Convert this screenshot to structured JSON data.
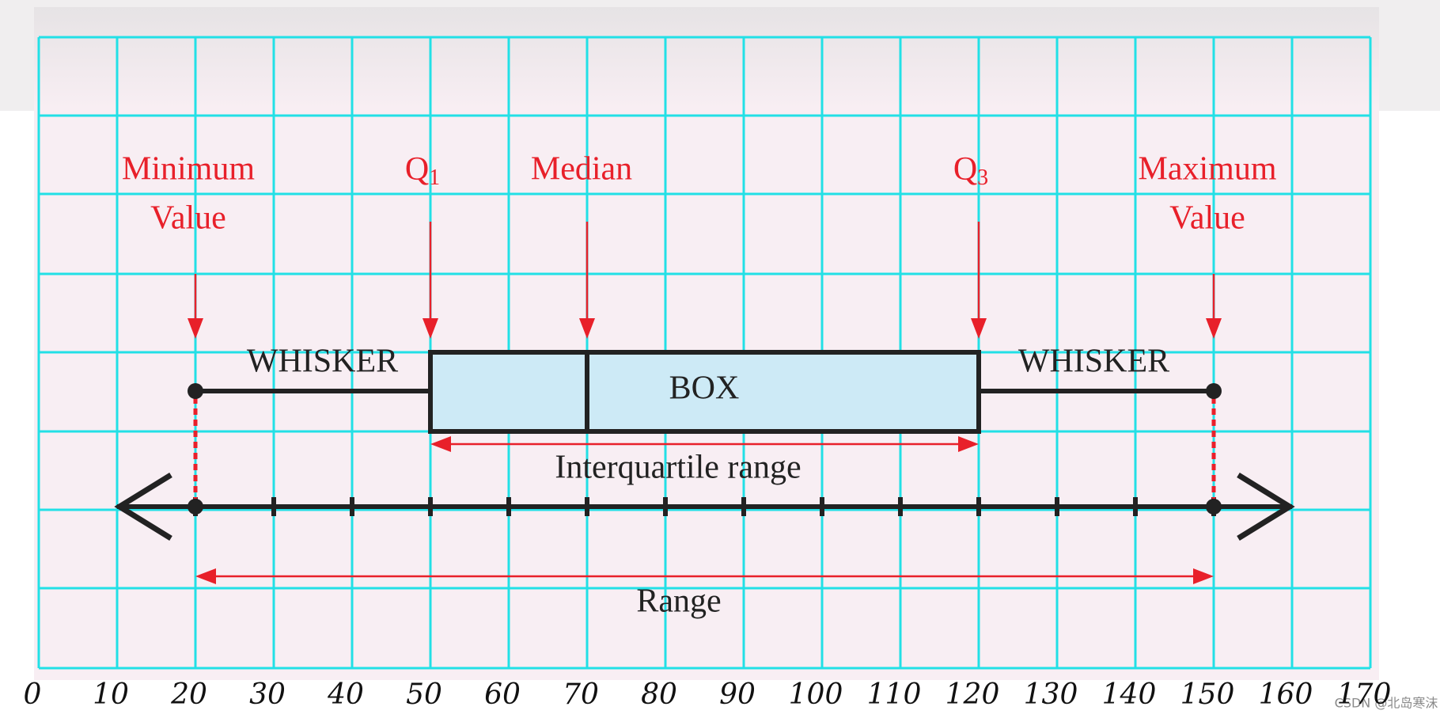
{
  "chart_data": {
    "type": "box",
    "min": 20,
    "q1": 50,
    "median": 70,
    "q3": 120,
    "max": 150,
    "xlim": [
      0,
      170
    ],
    "xticks": [
      0,
      10,
      20,
      30,
      40,
      50,
      60,
      70,
      80,
      90,
      100,
      110,
      120,
      130,
      140,
      150,
      160,
      170
    ],
    "grid": true,
    "min_label": [
      "Minimum",
      "Value"
    ],
    "q1_label": {
      "text": "Q",
      "sub": "1"
    },
    "median_label": "Median",
    "q3_label": {
      "text": "Q",
      "sub": "3"
    },
    "max_label": [
      "Maximum",
      "Value"
    ],
    "whisker_labels": [
      "WHISKER",
      "WHISKER"
    ],
    "box_label": "BOX",
    "iqr_label": "Interquartile range",
    "range_label": "Range",
    "box_color": "#cdeaf6",
    "accent_color": "#e8202a",
    "grid_color": "#22e0e6"
  },
  "watermark": "CSDN @北岛寒沫"
}
